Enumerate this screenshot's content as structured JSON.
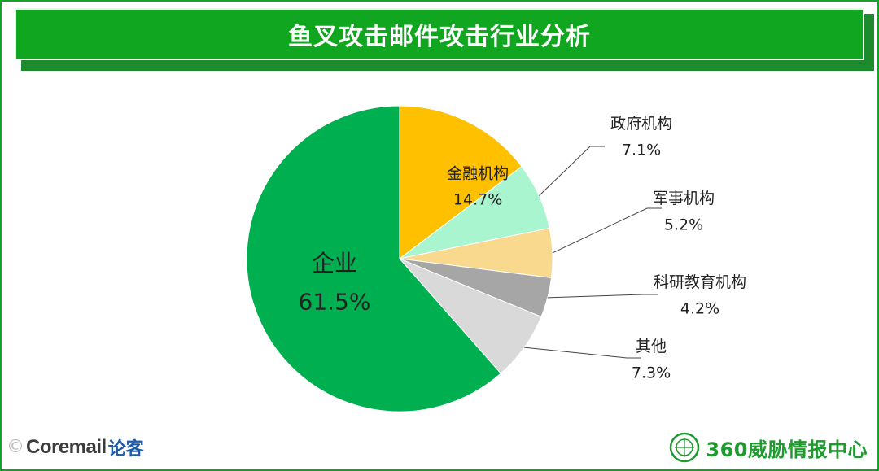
{
  "header": {
    "title": "鱼叉攻击邮件攻击行业分析"
  },
  "chart_data": {
    "type": "pie",
    "title": "鱼叉攻击邮件攻击行业分析",
    "slices": [
      {
        "label": "金融机构",
        "value": 14.7,
        "value_text": "14.7%",
        "color": "#ffc000"
      },
      {
        "label": "政府机构",
        "value": 7.1,
        "value_text": "7.1%",
        "color": "#a9f5cf"
      },
      {
        "label": "军事机构",
        "value": 5.2,
        "value_text": "5.2%",
        "color": "#f8d98e"
      },
      {
        "label": "科研教育机构",
        "value": 4.2,
        "value_text": "4.2%",
        "color": "#a6a6a6"
      },
      {
        "label": "其他",
        "value": 7.3,
        "value_text": "7.3%",
        "color": "#d9d9d9"
      },
      {
        "label": "企业",
        "value": 61.5,
        "value_text": "61.5%",
        "color": "#00b050"
      }
    ],
    "start_angle_deg": 0,
    "direction": "clockwise"
  },
  "footer": {
    "left_logo": "Coremail",
    "left_logo_sub": "论客",
    "right_brand": "360威胁情报中心"
  },
  "colors": {
    "title_bar": "#11a61f",
    "frame": "#12a329",
    "brand_green": "#1e9a2e"
  }
}
